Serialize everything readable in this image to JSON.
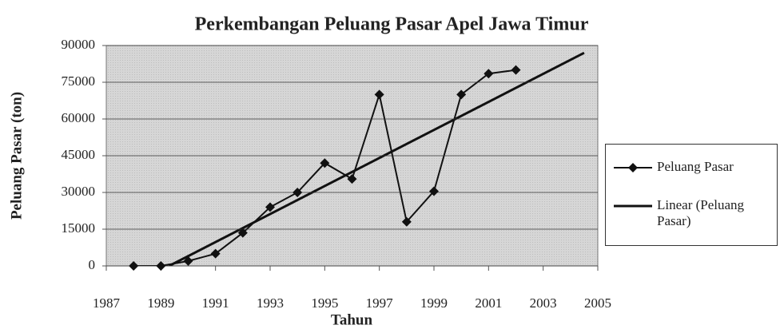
{
  "chart_data": {
    "type": "line",
    "title": "Perkembangan Peluang Pasar Apel Jawa Timur",
    "xlabel": "Tahun",
    "ylabel": "Peluang Pasar (ton)",
    "xlim": [
      1987,
      2005
    ],
    "xticks": [
      1987,
      1989,
      1991,
      1993,
      1995,
      1997,
      1999,
      2001,
      2003,
      2005
    ],
    "ylim": [
      0,
      90000
    ],
    "yticks": [
      0,
      15000,
      30000,
      45000,
      60000,
      75000,
      90000
    ],
    "grid": true,
    "legend": "right",
    "series": [
      {
        "name": "Peluang Pasar",
        "color": "#111111",
        "marker": "diamond",
        "x": [
          1988,
          1989,
          1990,
          1991,
          1992,
          1993,
          1994,
          1995,
          1996,
          1997,
          1998,
          1999,
          2000,
          2001,
          2002
        ],
        "values": [
          0,
          0,
          2000,
          5000,
          13500,
          24000,
          30000,
          42000,
          35500,
          70000,
          18000,
          30500,
          70000,
          78500,
          80000
        ]
      },
      {
        "name": "Linear (Peluang Pasar)",
        "color": "#111111",
        "x": [
          1989.3,
          2004.5
        ],
        "values": [
          0,
          87000
        ]
      }
    ]
  }
}
